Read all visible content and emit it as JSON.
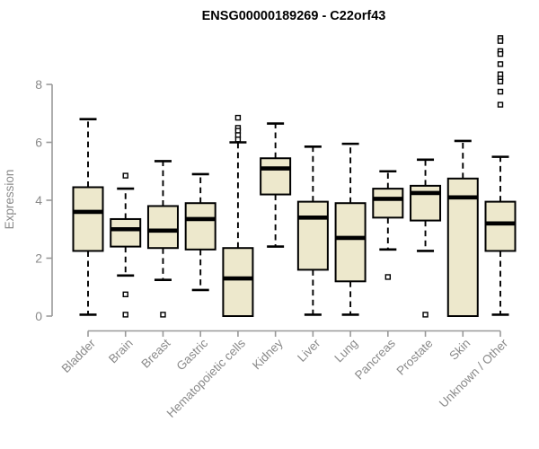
{
  "title": "ENSG00000189269 - C22orf43",
  "chart_data": {
    "type": "boxplot",
    "title": "ENSG00000189269 - C22orf43",
    "xlabel": "",
    "ylabel": "Expression",
    "ylim": [
      0,
      8
    ],
    "yticks": [
      0,
      2,
      4,
      6,
      8
    ],
    "grid": false,
    "legend": false,
    "categories": [
      "Bladder",
      "Brain",
      "Breast",
      "Gastric",
      "Hematopoietic cells",
      "Kidney",
      "Liver",
      "Lung",
      "Pancreas",
      "Prostate",
      "Skin",
      "Unknown / Other"
    ],
    "series": [
      {
        "category": "Bladder",
        "whisker_low": 0.05,
        "q1": 2.25,
        "median": 3.6,
        "q3": 4.45,
        "whisker_high": 6.8,
        "outliers": []
      },
      {
        "category": "Brain",
        "whisker_low": 1.4,
        "q1": 2.4,
        "median": 3.0,
        "q3": 3.35,
        "whisker_high": 4.4,
        "outliers": [
          4.85,
          0.75,
          0.05
        ]
      },
      {
        "category": "Breast",
        "whisker_low": 1.25,
        "q1": 2.35,
        "median": 2.95,
        "q3": 3.8,
        "whisker_high": 5.35,
        "outliers": [
          0.05
        ]
      },
      {
        "category": "Gastric",
        "whisker_low": 0.9,
        "q1": 2.3,
        "median": 3.35,
        "q3": 3.9,
        "whisker_high": 4.9,
        "outliers": []
      },
      {
        "category": "Hematopoietic cells",
        "whisker_low": 0.0,
        "q1": 0.0,
        "median": 1.3,
        "q3": 2.35,
        "whisker_high": 6.0,
        "outliers": [
          6.85,
          6.5,
          6.4,
          6.25,
          6.1
        ]
      },
      {
        "category": "Kidney",
        "whisker_low": 2.4,
        "q1": 4.2,
        "median": 5.1,
        "q3": 5.45,
        "whisker_high": 6.65,
        "outliers": []
      },
      {
        "category": "Liver",
        "whisker_low": 0.05,
        "q1": 1.6,
        "median": 3.4,
        "q3": 3.95,
        "whisker_high": 5.85,
        "outliers": []
      },
      {
        "category": "Lung",
        "whisker_low": 0.05,
        "q1": 1.2,
        "median": 2.7,
        "q3": 3.9,
        "whisker_high": 5.95,
        "outliers": []
      },
      {
        "category": "Pancreas",
        "whisker_low": 2.3,
        "q1": 3.4,
        "median": 4.05,
        "q3": 4.4,
        "whisker_high": 5.0,
        "outliers": [
          1.35
        ]
      },
      {
        "category": "Prostate",
        "whisker_low": 2.25,
        "q1": 3.3,
        "median": 4.25,
        "q3": 4.5,
        "whisker_high": 5.4,
        "outliers": [
          0.05
        ]
      },
      {
        "category": "Skin",
        "whisker_low": 0.0,
        "q1": 0.0,
        "median": 4.1,
        "q3": 4.75,
        "whisker_high": 6.05,
        "outliers": []
      },
      {
        "category": "Unknown / Other",
        "whisker_low": 0.05,
        "q1": 2.25,
        "median": 3.2,
        "q3": 3.95,
        "whisker_high": 5.5,
        "outliers": [
          9.6,
          9.5,
          9.15,
          9.05,
          8.7,
          8.35,
          8.2,
          8.1,
          7.75,
          7.3
        ]
      }
    ],
    "style": {
      "box_fill": "#EDE8CC",
      "box_stroke": "#000000",
      "median_color": "#000000",
      "whisker_color": "#000000",
      "outlier_fill": "#FFFFFF",
      "outlier_stroke": "#000000",
      "axis_color": "#999999",
      "label_color": "#8A8A8A",
      "title_color": "#000000",
      "background": "#FFFFFF"
    }
  }
}
